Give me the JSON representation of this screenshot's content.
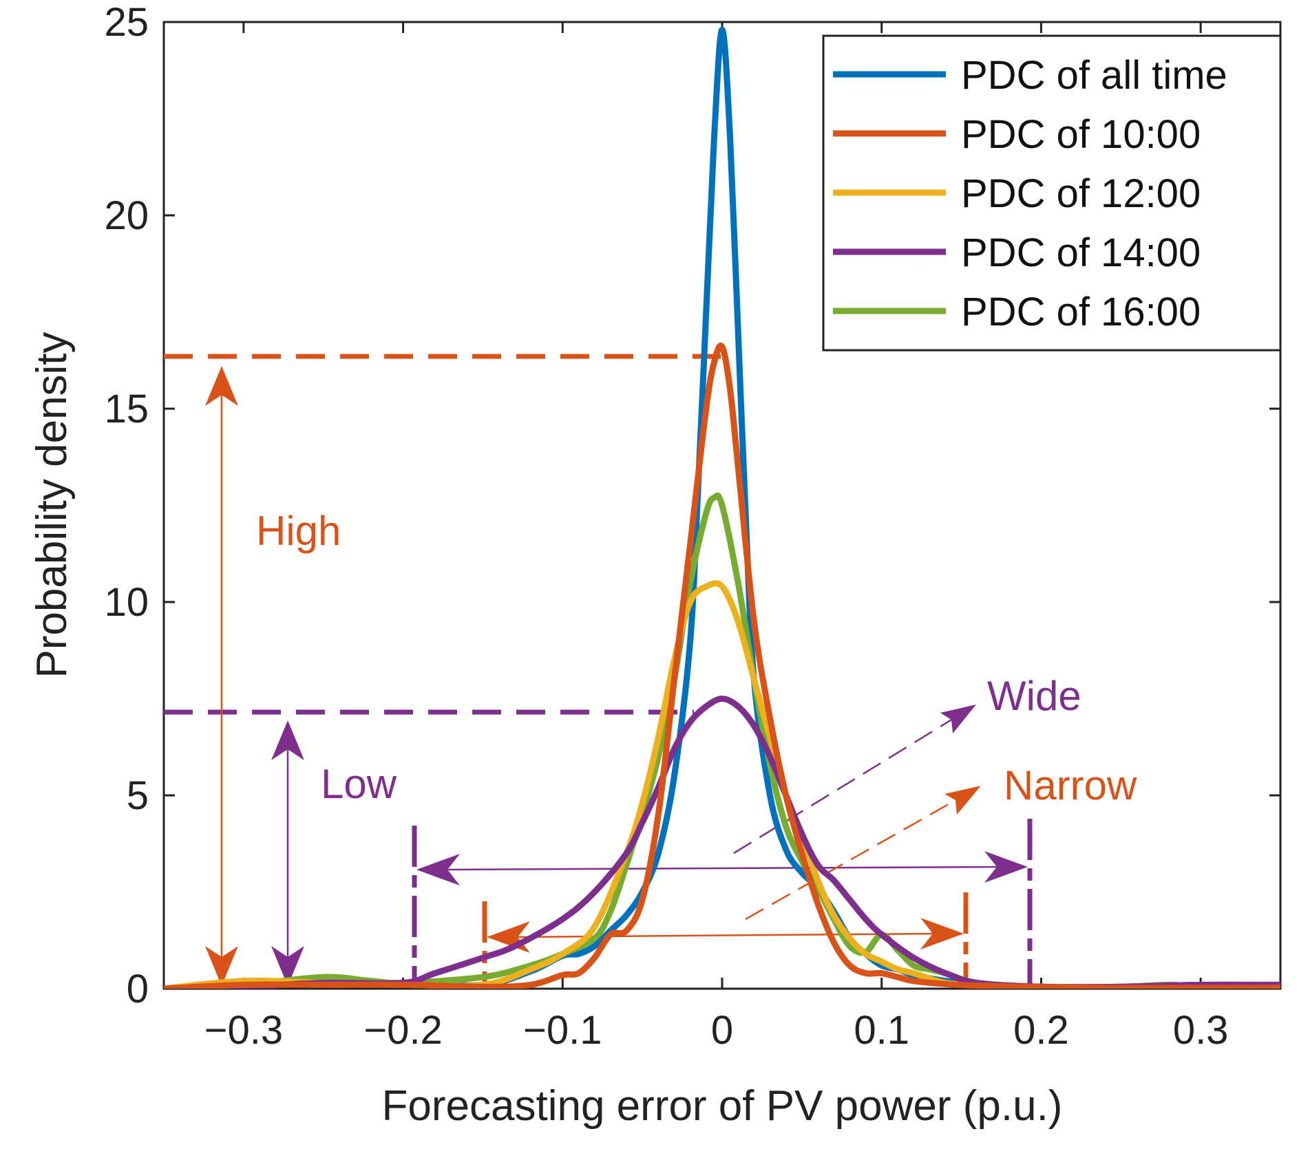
{
  "chart_data": {
    "type": "line",
    "title": "",
    "xlabel": "Forecasting error of PV power (p.u.)",
    "ylabel": "Probability density",
    "xlim": [
      -0.35,
      0.35
    ],
    "ylim": [
      0,
      25
    ],
    "xticks": [
      -0.3,
      -0.2,
      -0.1,
      0,
      0.1,
      0.2,
      0.3
    ],
    "xtick_labels": [
      "−0.3",
      "−0.2",
      "−0.1",
      "0",
      "0.1",
      "0.2",
      "0.3"
    ],
    "yticks": [
      0,
      5,
      10,
      15,
      20,
      25
    ],
    "ytick_labels": [
      "0",
      "5",
      "10",
      "15",
      "20",
      "25"
    ],
    "grid": false,
    "legend_position": "top-right",
    "series": [
      {
        "name": "PDC of all time",
        "color": "#0072BD",
        "x": [
          -0.35,
          -0.3,
          -0.25,
          -0.2,
          -0.15,
          -0.12,
          -0.1,
          -0.09,
          -0.08,
          -0.07,
          -0.06,
          -0.05,
          -0.04,
          -0.03,
          -0.02,
          -0.015,
          -0.01,
          -0.005,
          0,
          0.005,
          0.01,
          0.015,
          0.02,
          0.03,
          0.04,
          0.05,
          0.06,
          0.07,
          0.08,
          0.09,
          0.1,
          0.11,
          0.12,
          0.14,
          0.16,
          0.2,
          0.25,
          0.3,
          0.35
        ],
        "y": [
          0,
          0.1,
          0.12,
          0.15,
          0.1,
          0.45,
          0.85,
          0.9,
          1.1,
          1.5,
          1.9,
          2.5,
          3.5,
          5.5,
          9,
          13,
          17.5,
          22,
          24.8,
          22,
          17,
          12,
          8,
          5,
          3.6,
          3,
          2.6,
          2.0,
          1.3,
          0.9,
          0.6,
          0.5,
          0.35,
          0.2,
          0.1,
          0.05,
          0.02,
          0.04,
          0.05
        ]
      },
      {
        "name": "PDC of 10:00",
        "color": "#D95319",
        "x": [
          -0.35,
          -0.3,
          -0.25,
          -0.2,
          -0.15,
          -0.12,
          -0.1,
          -0.09,
          -0.08,
          -0.07,
          -0.06,
          -0.05,
          -0.04,
          -0.03,
          -0.02,
          -0.01,
          -0.005,
          0,
          0.005,
          0.01,
          0.02,
          0.03,
          0.04,
          0.05,
          0.06,
          0.07,
          0.08,
          0.09,
          0.1,
          0.11,
          0.12,
          0.14,
          0.16,
          0.2,
          0.25,
          0.3,
          0.35
        ],
        "y": [
          0,
          0.1,
          0.1,
          0.1,
          0.05,
          0.1,
          0.35,
          0.4,
          0.8,
          1.4,
          1.5,
          2.3,
          4.5,
          8,
          11.5,
          15,
          16.2,
          16.6,
          15.5,
          13.5,
          9.5,
          7,
          5,
          3.5,
          2.2,
          1.2,
          0.6,
          0.4,
          0.4,
          0.3,
          0.2,
          0.12,
          0.08,
          0.04,
          0.02,
          0.02,
          0.02
        ]
      },
      {
        "name": "PDC of 12:00",
        "color": "#EDB120",
        "x": [
          -0.35,
          -0.3,
          -0.25,
          -0.2,
          -0.15,
          -0.12,
          -0.1,
          -0.08,
          -0.06,
          -0.05,
          -0.04,
          -0.03,
          -0.02,
          -0.01,
          0,
          0.01,
          0.02,
          0.03,
          0.04,
          0.05,
          0.06,
          0.07,
          0.08,
          0.09,
          0.1,
          0.11,
          0.12,
          0.14,
          0.16,
          0.2,
          0.25,
          0.3,
          0.35
        ],
        "y": [
          0,
          0.2,
          0.15,
          0.1,
          0.1,
          0.5,
          0.9,
          1.6,
          3.5,
          4.8,
          6.5,
          8.5,
          10,
          10.4,
          10.4,
          9.5,
          8,
          6.5,
          5,
          4,
          2.8,
          1.9,
          1.3,
          0.9,
          0.7,
          0.5,
          0.4,
          0.15,
          0.1,
          0.05,
          0.03,
          0.03,
          0.03
        ]
      },
      {
        "name": "PDC of 14:00",
        "color": "#7E2F8E",
        "x": [
          -0.35,
          -0.3,
          -0.25,
          -0.2,
          -0.18,
          -0.15,
          -0.13,
          -0.1,
          -0.08,
          -0.06,
          -0.05,
          -0.04,
          -0.03,
          -0.02,
          -0.01,
          0,
          0.01,
          0.02,
          0.03,
          0.04,
          0.05,
          0.06,
          0.07,
          0.08,
          0.09,
          0.1,
          0.12,
          0.14,
          0.16,
          0.2,
          0.25,
          0.3,
          0.35
        ],
        "y": [
          0,
          0.05,
          0.15,
          0.15,
          0.4,
          0.8,
          1.1,
          1.8,
          2.5,
          3.5,
          4.3,
          5.2,
          6.2,
          6.9,
          7.3,
          7.5,
          7.3,
          6.8,
          6.0,
          5.0,
          4.0,
          3.2,
          2.8,
          2.3,
          1.8,
          1.4,
          0.8,
          0.4,
          0.15,
          0.05,
          0.05,
          0.1,
          0.1
        ]
      },
      {
        "name": "PDC of 16:00",
        "color": "#77AC30",
        "x": [
          -0.35,
          -0.3,
          -0.25,
          -0.22,
          -0.2,
          -0.15,
          -0.12,
          -0.1,
          -0.08,
          -0.07,
          -0.06,
          -0.05,
          -0.04,
          -0.03,
          -0.02,
          -0.01,
          -0.005,
          0,
          0.01,
          0.02,
          0.03,
          0.04,
          0.05,
          0.06,
          0.07,
          0.08,
          0.09,
          0.1,
          0.11,
          0.12,
          0.13,
          0.14,
          0.16,
          0.2,
          0.25,
          0.28,
          0.3,
          0.35
        ],
        "y": [
          0,
          0.1,
          0.3,
          0.2,
          0.15,
          0.3,
          0.6,
          0.9,
          1.3,
          2.0,
          3.2,
          4.5,
          6.0,
          8.0,
          10.5,
          12.3,
          12.7,
          12.5,
          10.5,
          8.0,
          5.8,
          4.2,
          3.3,
          2.6,
          1.8,
          1.1,
          0.95,
          1.4,
          1.0,
          0.6,
          0.5,
          0.4,
          0.15,
          0.05,
          0.05,
          0.1,
          0.05,
          0.05
        ]
      }
    ],
    "annotations": {
      "high_label": "High",
      "low_label": "Low",
      "wide_label": "Wide",
      "narrow_label": "Narrow",
      "high_color": "#D95319",
      "low_color": "#7E2F8E"
    }
  }
}
